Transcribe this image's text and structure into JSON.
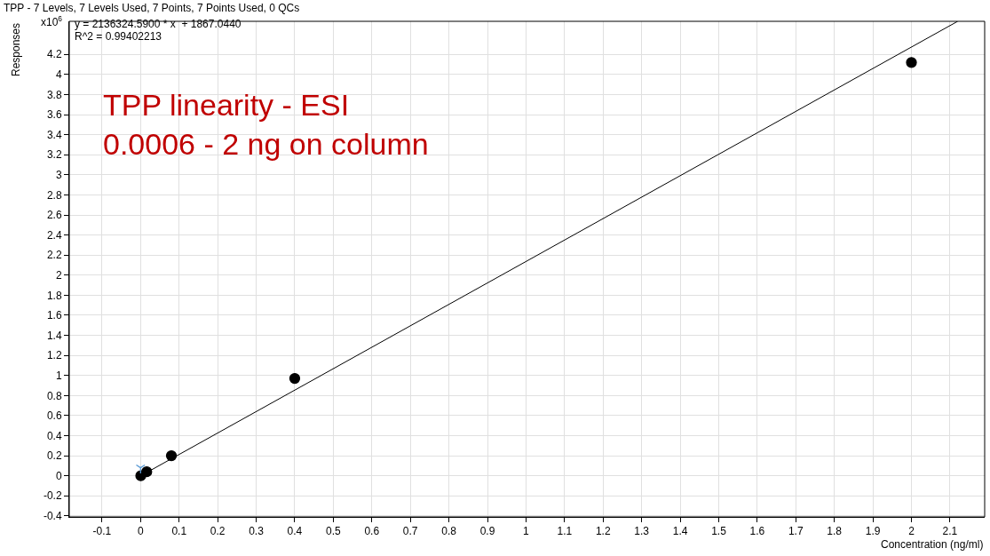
{
  "chart_data": {
    "type": "scatter",
    "title": "TPP - 7 Levels, 7 Levels Used, 7 Points, 7 Points Used, 0 QCs",
    "xlabel": "Concentration (ng/ml)",
    "ylabel": "Responses",
    "annotations": [
      "x10$^{6}$",
      "y = 2136324.5900 * x  + 1867.0440",
      "R^2 = 0.99402213",
      "TPP linearity - ESI",
      "0.0006 - 2 ng on column"
    ],
    "series": [
      {
        "type": "line",
        "color": "#000000",
        "x": [
          0.0006,
          2.12
        ],
        "values": [
          0,
          4.53
        ],
        "marker": "none",
        "line_style": "solid"
      },
      {
        "color": "#000000",
        "x": [
          0.0006,
          0.003,
          0.008,
          0.016,
          0.08,
          0.4,
          2
        ],
        "values": [
          0.0,
          null,
          null,
          0.04,
          0.2,
          0.97,
          4.12
        ],
        "marker": "circle"
      },
      {
        "color": "#5b9bd5",
        "x": [
          0
        ],
        "values": [
          0.08
        ],
        "marker": "cross"
      }
    ],
    "xlim": [
      -0.185,
      2.19
    ],
    "ylim": [
      -0.41,
      4.53
    ],
    "xticks": [
      -0.1,
      0,
      0.1,
      0.2,
      0.3,
      0.4,
      0.5,
      0.6,
      0.7,
      0.8,
      0.9,
      1,
      1.1,
      1.2,
      1.3,
      1.4,
      1.5,
      1.6,
      1.7,
      1.8,
      1.9,
      2,
      2.1
    ],
    "yticks": [
      -0.4,
      -0.2,
      0,
      0.2,
      0.4,
      0.6,
      0.8,
      1,
      1.2,
      1.4,
      1.6,
      1.8,
      2,
      2.2,
      2.4,
      2.6,
      2.8,
      3,
      3.2,
      3.4,
      3.6,
      3.8,
      4,
      4.2
    ],
    "grid": true
  }
}
